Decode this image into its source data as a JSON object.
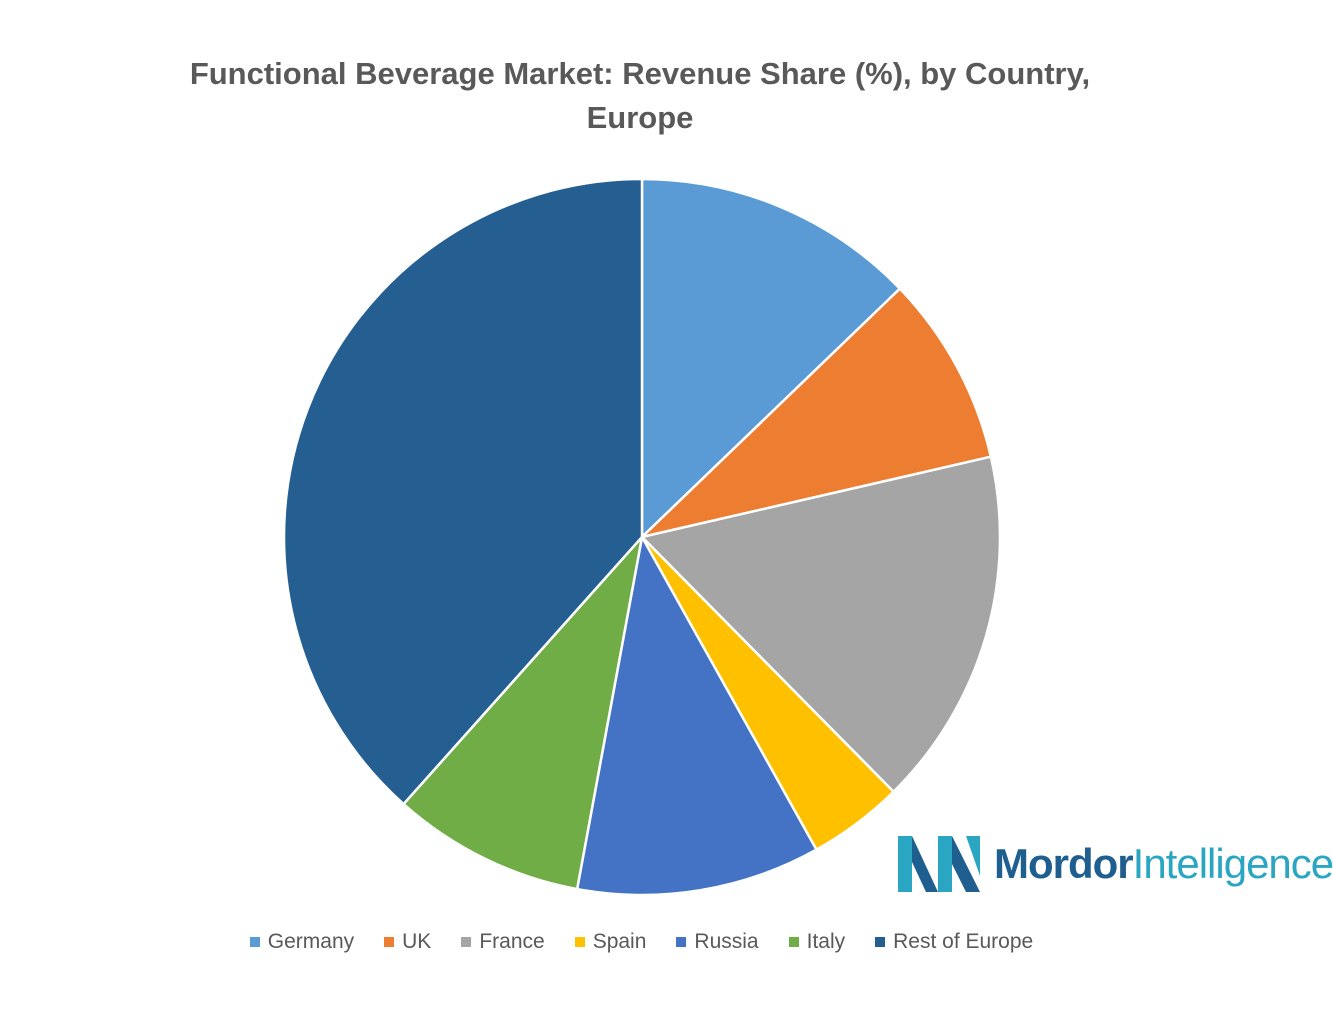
{
  "chart_data": {
    "type": "pie",
    "title": "Functional Beverage Market: Revenue Share (%), by Country, Europe",
    "categories": [
      "Germany",
      "UK",
      "France",
      "Spain",
      "Russia",
      "Italy",
      "Rest of Europe"
    ],
    "values": [
      12.8,
      8.6,
      16.2,
      4.3,
      11.0,
      8.7,
      38.4
    ],
    "colors": [
      "#5b9bd5",
      "#ed7d31",
      "#a5a5a5",
      "#ffc000",
      "#4472c4",
      "#70ad47",
      "#255e91"
    ],
    "legend": "bottom"
  },
  "logo": {
    "brand": "Mordor",
    "suffix": "Intelligence"
  }
}
